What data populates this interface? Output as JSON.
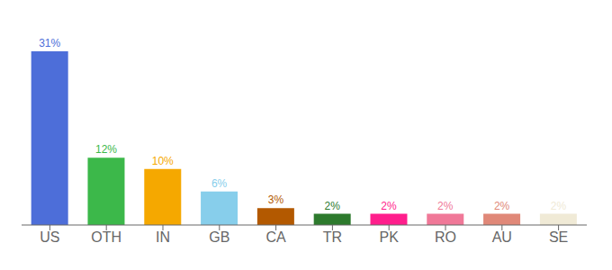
{
  "chart_data": {
    "type": "bar",
    "categories": [
      "US",
      "OTH",
      "IN",
      "GB",
      "CA",
      "TR",
      "PK",
      "RO",
      "AU",
      "SE"
    ],
    "values": [
      31,
      12,
      10,
      6,
      3,
      2,
      2,
      2,
      2,
      2
    ],
    "value_labels": [
      "31%",
      "12%",
      "10%",
      "6%",
      "3%",
      "2%",
      "2%",
      "2%",
      "2%",
      "2%"
    ],
    "colors": [
      "#4d6ed9",
      "#3cb84a",
      "#f5a800",
      "#87ceeb",
      "#b35900",
      "#2d7a2d",
      "#ff1e8c",
      "#f07898",
      "#e08878",
      "#f0ead6"
    ],
    "ylim": [
      0,
      35
    ],
    "grid": false,
    "data_labels": true,
    "tick_labels": "x"
  }
}
